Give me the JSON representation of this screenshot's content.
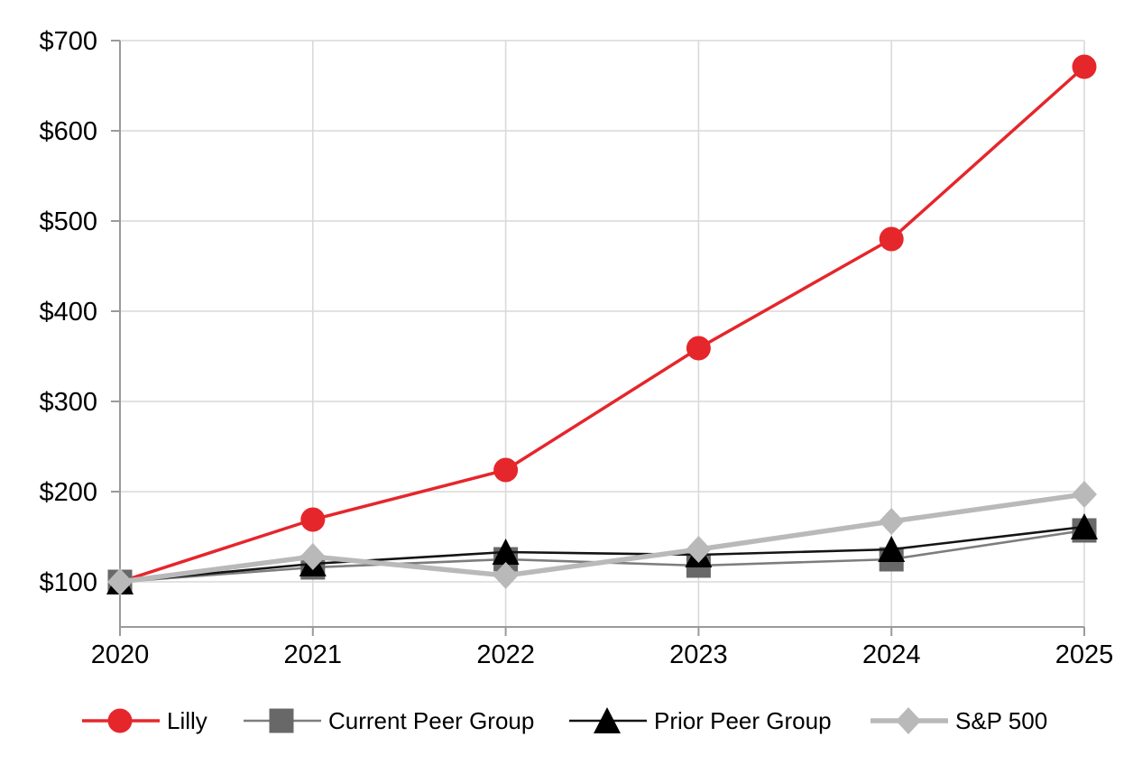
{
  "chart_data": {
    "type": "line",
    "title": "",
    "x_labels": [
      "2020",
      "2021",
      "2022",
      "2023",
      "2024",
      "2025"
    ],
    "y_tick_labels": [
      "$100",
      "$200",
      "$300",
      "$400",
      "$500",
      "$600",
      "$700"
    ],
    "y_tick_values": [
      100,
      200,
      300,
      400,
      500,
      600,
      700
    ],
    "ylim": [
      50,
      700
    ],
    "grid": true,
    "legend_position": "bottom",
    "currency_prefix": "$",
    "base_index_value": 100,
    "colors": {
      "gridline": "#d9d9d9",
      "axis": "#9a9a9a",
      "label_text": "#000000",
      "background": "#ffffff",
      "lilly_red": "#e5262b",
      "current_peer_gray": "#686868",
      "prior_peer_black": "#000000",
      "sp500_gray": "#b9b9b9"
    },
    "series": [
      {
        "name": "Lilly",
        "marker": "circle",
        "marker_icon": "circle-marker-icon",
        "color": "#e5262b",
        "line_color": "#e5262b",
        "line_width": 3.5,
        "marker_size": 27,
        "values": [
          100,
          169,
          224,
          359,
          480,
          671
        ]
      },
      {
        "name": "Current Peer Group",
        "marker": "square",
        "marker_icon": "square-marker-icon",
        "color": "#686868",
        "line_color": "#7d7d7d",
        "line_width": 2.6,
        "marker_size": 27,
        "values": [
          100,
          116,
          125,
          118,
          125,
          157
        ]
      },
      {
        "name": "Prior Peer Group",
        "marker": "triangle",
        "marker_icon": "triangle-marker-icon",
        "color": "#000000",
        "line_color": "#141414",
        "line_width": 2.6,
        "marker_size": 28,
        "values": [
          100,
          120,
          133,
          130,
          136,
          161
        ]
      },
      {
        "name": "S&P 500",
        "marker": "diamond",
        "marker_icon": "diamond-marker-icon",
        "color": "#b9b9b9",
        "line_color": "#b9b9b9",
        "line_width": 5.5,
        "marker_size": 28,
        "values": [
          100,
          128,
          107,
          136,
          167,
          197
        ]
      }
    ]
  }
}
